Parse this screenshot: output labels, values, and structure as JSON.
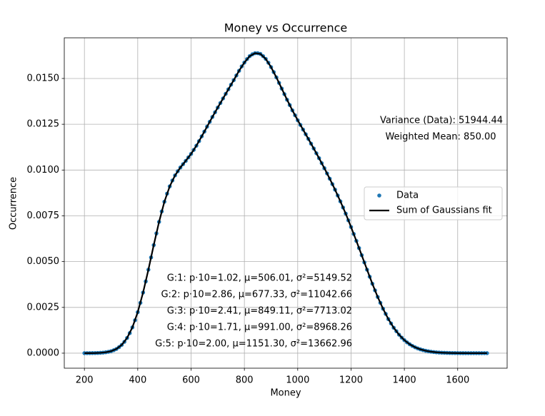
{
  "chart_data": {
    "type": "scatter-line",
    "title": "Money vs Occurrence",
    "xlabel": "Money",
    "ylabel": "Occurrence",
    "xlim": [
      124.5,
      1785.5
    ],
    "ylim": [
      -0.00082,
      0.01722
    ],
    "xticks": [
      200,
      400,
      600,
      800,
      1000,
      1200,
      1400,
      1600
    ],
    "yticks": [
      {
        "value": 0,
        "label": "0.0000"
      },
      {
        "value": 0.0025,
        "label": "0.0025"
      },
      {
        "value": 0.005,
        "label": "0.0050"
      },
      {
        "value": 0.0075,
        "label": "0.0075"
      },
      {
        "value": 0.01,
        "label": "0.0100"
      },
      {
        "value": 0.0125,
        "label": "0.0125"
      },
      {
        "value": 0.015,
        "label": "0.0150"
      }
    ],
    "grid": true,
    "legend": "center right",
    "annotations": [
      "Variance (Data): 51944.44",
      "Weighted Mean: 850.00",
      "G:1: p·10=1.02, μ=506.01, σ²=5149.52",
      "G:2: p·10=2.86, μ=677.33, σ²=11042.66",
      "G:3: p·10=2.41, μ=849.11, σ²=7713.02",
      "G:4: p·10=1.71, μ=991.00, σ²=8968.26",
      "G:5: p·10=2.00, μ=1151.30, σ²=13662.96"
    ],
    "series": [
      {
        "name": "Data",
        "color": "#1f77b4",
        "style": "points",
        "x": [
          200,
          210,
          220,
          230,
          240,
          250,
          260,
          270,
          280,
          290,
          300,
          310,
          320,
          330,
          340,
          350,
          360,
          370,
          380,
          390,
          400,
          410,
          420,
          430,
          440,
          450,
          460,
          470,
          480,
          490,
          500,
          510,
          520,
          530,
          540,
          550,
          560,
          570,
          580,
          590,
          600,
          610,
          620,
          630,
          640,
          650,
          660,
          670,
          680,
          690,
          700,
          710,
          720,
          730,
          740,
          750,
          760,
          770,
          780,
          790,
          800,
          810,
          820,
          830,
          840,
          850,
          860,
          870,
          880,
          890,
          900,
          910,
          920,
          930,
          940,
          950,
          960,
          970,
          980,
          990,
          1000,
          1010,
          1020,
          1030,
          1040,
          1050,
          1060,
          1070,
          1080,
          1090,
          1100,
          1110,
          1120,
          1130,
          1140,
          1150,
          1160,
          1170,
          1180,
          1190,
          1200,
          1210,
          1220,
          1230,
          1240,
          1250,
          1260,
          1270,
          1280,
          1290,
          1300,
          1310,
          1320,
          1330,
          1340,
          1350,
          1360,
          1370,
          1380,
          1390,
          1400,
          1410,
          1420,
          1430,
          1440,
          1450,
          1460,
          1470,
          1480,
          1490,
          1500,
          1510,
          1520,
          1530,
          1540,
          1550,
          1560,
          1570,
          1580,
          1590,
          1600,
          1610,
          1620,
          1630,
          1640,
          1650,
          1660,
          1670,
          1680,
          1690,
          1700,
          1710
        ],
        "values": [
          1e-06,
          2e-06,
          3e-06,
          5e-06,
          8e-06,
          1.3e-05,
          2e-05,
          3.2e-05,
          4.9e-05,
          7.4e-05,
          0.000109,
          0.000162,
          0.00023,
          0.00033,
          0.000454,
          0.00062,
          0.00083,
          0.001095,
          0.00141,
          0.0018,
          0.00224,
          0.00275,
          0.00331,
          0.00392,
          0.00456,
          0.00523,
          0.0059,
          0.00654,
          0.00717,
          0.00774,
          0.00827,
          0.00871,
          0.00911,
          0.00943,
          0.00971,
          0.009935,
          0.01014,
          0.01032,
          0.0105,
          0.01069,
          0.01088,
          0.0111,
          0.01133,
          0.01158,
          0.01184,
          0.0121,
          0.01237,
          0.012635,
          0.0129,
          0.013155,
          0.01341,
          0.01366,
          0.01391,
          0.01416,
          0.01441,
          0.01466,
          0.01491,
          0.015165,
          0.01542,
          0.01566,
          0.01587,
          0.01606,
          0.01622,
          0.01632,
          0.01638,
          0.01638,
          0.01634,
          0.01622,
          0.01607,
          0.01586,
          0.01562,
          0.01535,
          0.01506,
          0.01476,
          0.01445,
          0.014145,
          0.01384,
          0.01355,
          0.01326,
          0.01299,
          0.01272,
          0.012465,
          0.01221,
          0.011955,
          0.0117,
          0.01144,
          0.01118,
          0.010915,
          0.01065,
          0.010375,
          0.0101,
          0.009815,
          0.00953,
          0.00923,
          0.00893,
          0.00861,
          0.00829,
          0.007955,
          0.00762,
          0.007255,
          0.00689,
          0.00651,
          0.00613,
          0.00574,
          0.00535,
          0.004955,
          0.00456,
          0.004175,
          0.00379,
          0.00343,
          0.00307,
          0.00275,
          0.00243,
          0.002145,
          0.00186,
          0.001625,
          0.00139,
          0.0012,
          0.00101,
          0.00085,
          0.000711,
          0.00059,
          0.000486,
          0.000398,
          0.000323,
          0.000261,
          0.000209,
          0.000166,
          0.000131,
          0.000103,
          8e-05,
          6.2e-05,
          4.7e-05,
          3.6e-05,
          2.7e-05,
          2.1e-05,
          1.5e-05,
          1.1e-05,
          8e-06,
          6e-06,
          4e-06,
          3e-06,
          2e-06,
          1e-06,
          1e-06,
          0,
          0,
          0,
          0,
          0,
          0,
          0
        ]
      },
      {
        "name": "Sum of Gaussians fit",
        "color": "#000000",
        "style": "line",
        "x": [
          200,
          220,
          240,
          260,
          280,
          300,
          320,
          340,
          360,
          380,
          400,
          420,
          440,
          460,
          480,
          500,
          520,
          540,
          560,
          580,
          600,
          620,
          640,
          660,
          680,
          700,
          720,
          740,
          760,
          780,
          800,
          820,
          840,
          860,
          880,
          900,
          920,
          940,
          960,
          980,
          1000,
          1020,
          1040,
          1060,
          1080,
          1100,
          1120,
          1140,
          1160,
          1180,
          1200,
          1220,
          1240,
          1260,
          1280,
          1300,
          1320,
          1340,
          1360,
          1380,
          1400,
          1420,
          1440,
          1460,
          1480,
          1500,
          1520,
          1540,
          1560,
          1580,
          1600,
          1620,
          1640,
          1660,
          1680,
          1700,
          1710
        ],
        "values": [
          1e-06,
          3e-06,
          8e-06,
          2e-05,
          4.9e-05,
          0.000109,
          0.00023,
          0.000454,
          0.00083,
          0.00141,
          0.00224,
          0.00331,
          0.00456,
          0.0059,
          0.00717,
          0.00827,
          0.00911,
          0.00971,
          0.01014,
          0.0105,
          0.01088,
          0.01133,
          0.01184,
          0.01237,
          0.0129,
          0.01341,
          0.01391,
          0.01441,
          0.01491,
          0.01542,
          0.01587,
          0.01622,
          0.01638,
          0.01634,
          0.01607,
          0.01562,
          0.01506,
          0.01445,
          0.01384,
          0.01326,
          0.01272,
          0.01221,
          0.0117,
          0.01118,
          0.01065,
          0.0101,
          0.00953,
          0.00893,
          0.00829,
          0.00762,
          0.00689,
          0.00613,
          0.00535,
          0.00456,
          0.00379,
          0.00307,
          0.00243,
          0.00186,
          0.00139,
          0.00101,
          0.000711,
          0.000486,
          0.000323,
          0.000209,
          0.000131,
          8e-05,
          4.7e-05,
          2.7e-05,
          1.5e-05,
          8e-06,
          4e-06,
          2e-06,
          1e-06,
          0,
          0,
          0,
          0
        ]
      }
    ]
  }
}
